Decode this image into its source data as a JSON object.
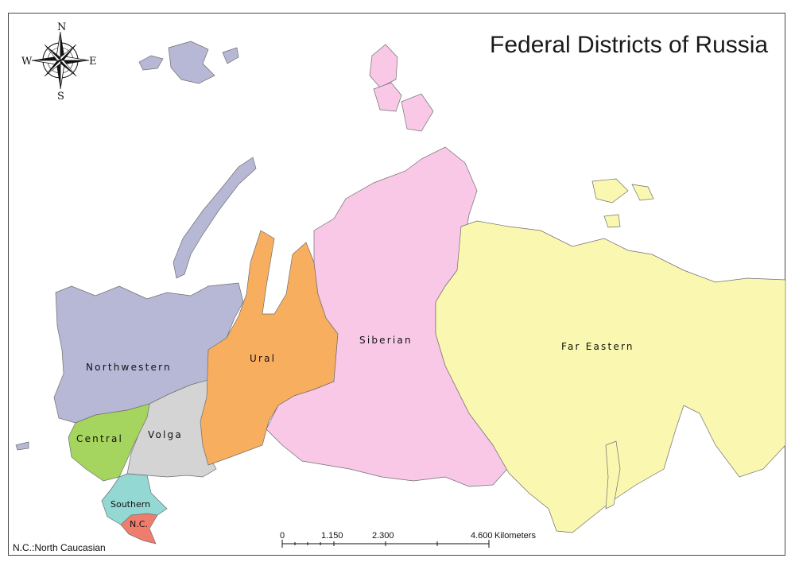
{
  "title": "Federal Districts of Russia",
  "footnote": "N.C.:North Caucasian",
  "compass": {
    "n": "N",
    "s": "S",
    "e": "E",
    "w": "W"
  },
  "scale_bar": {
    "ticks": [
      "0",
      "1.150",
      "2.300",
      "4.600"
    ],
    "unit": "Kilometers"
  },
  "districts": {
    "northwestern": {
      "label": "Northwestern",
      "color": "#b7b7d6"
    },
    "central": {
      "label": "Central",
      "color": "#a5d55f"
    },
    "volga": {
      "label": "Volga",
      "color": "#d4d4d4"
    },
    "southern": {
      "label": "Southern",
      "color": "#93d8d2"
    },
    "north_caucasian": {
      "label": "N.C.",
      "color": "#ef7d6d"
    },
    "ural": {
      "label": "Ural",
      "color": "#f8ae5f"
    },
    "siberian": {
      "label": "Siberian",
      "color": "#f9c8e6"
    },
    "far_eastern": {
      "label": "Far Eastern",
      "color": "#faf8b0"
    }
  }
}
